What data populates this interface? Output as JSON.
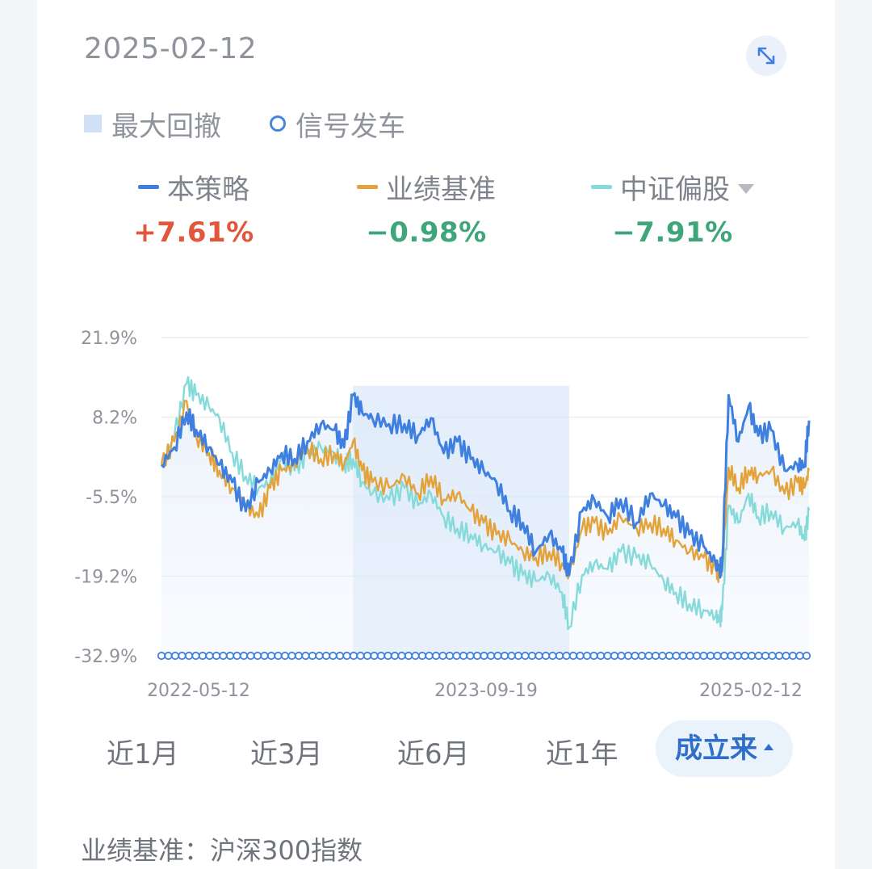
{
  "header": {
    "date": "2025-02-12",
    "expand_icon": "expand-arrows-icon"
  },
  "toggles": [
    {
      "label": "最大回撤",
      "icon": "square-legend-icon"
    },
    {
      "label": "信号发车",
      "icon": "circle-legend-icon"
    }
  ],
  "series_summary": [
    {
      "name": "本策略",
      "value": "+7.61%",
      "line_color": "#3f7fe0",
      "value_color": "#e2573c"
    },
    {
      "name": "业绩基准",
      "value": "−0.98%",
      "line_color": "#e3a23a",
      "value_color": "#3fa57a"
    },
    {
      "name": "中证偏股",
      "value": "−7.91%",
      "line_color": "#86dada",
      "value_color": "#3fa57a",
      "has_dropdown": true
    }
  ],
  "chart_data": {
    "type": "line",
    "y_ticks": [
      "21.9%",
      "8.2%",
      "-5.5%",
      "-19.2%",
      "-32.9%"
    ],
    "ylim": [
      -32.9,
      21.9
    ],
    "x_ticks": [
      "2022-05-12",
      "2023-09-19",
      "2025-02-12"
    ],
    "x_range": [
      "2022-05-12",
      "2025-02-12"
    ],
    "grid": true,
    "drawdown_shading": {
      "start": "2023-03-06",
      "end": "2024-02-05"
    },
    "signal_markers": "continuous along x-axis",
    "series": [
      {
        "name": "本策略",
        "color": "#3f7fe0",
        "x": [
          "2022-05-12",
          "2022-06-01",
          "2022-06-20",
          "2022-07-05",
          "2022-07-25",
          "2022-08-10",
          "2022-08-30",
          "2022-09-20",
          "2022-10-10",
          "2022-10-28",
          "2022-11-15",
          "2022-12-05",
          "2022-12-25",
          "2023-01-15",
          "2023-02-05",
          "2023-02-20",
          "2023-03-06",
          "2023-03-20",
          "2023-04-05",
          "2023-05-01",
          "2023-05-25",
          "2023-06-15",
          "2023-07-05",
          "2023-07-25",
          "2023-08-15",
          "2023-09-05",
          "2023-09-25",
          "2023-10-15",
          "2023-11-05",
          "2023-11-25",
          "2023-12-15",
          "2024-01-05",
          "2024-01-25",
          "2024-02-05",
          "2024-02-25",
          "2024-03-15",
          "2024-04-05",
          "2024-04-25",
          "2024-05-20",
          "2024-06-10",
          "2024-07-01",
          "2024-07-20",
          "2024-08-10",
          "2024-09-01",
          "2024-09-20",
          "2024-09-26",
          "2024-09-30",
          "2024-10-10",
          "2024-10-25",
          "2024-11-10",
          "2024-11-25",
          "2024-12-15",
          "2025-01-05",
          "2025-01-25",
          "2025-02-05",
          "2025-02-12"
        ],
        "values": [
          0,
          3,
          9,
          6,
          3,
          0,
          -3,
          -8,
          -3,
          -1,
          2,
          1,
          4,
          7,
          6,
          3,
          12,
          9,
          8,
          7,
          7,
          5,
          8,
          2,
          4,
          1,
          -1,
          -3,
          -8,
          -10,
          -15,
          -12,
          -15,
          -19,
          -8,
          -6,
          -9,
          -6,
          -10,
          -5,
          -7,
          -9,
          -12,
          -14,
          -17,
          -18,
          -17,
          12,
          4,
          10,
          5,
          6,
          -1,
          0,
          0,
          7.61
        ]
      },
      {
        "name": "业绩基准",
        "color": "#e3a23a",
        "x": [
          "2022-05-12",
          "2022-06-01",
          "2022-06-20",
          "2022-07-05",
          "2022-07-25",
          "2022-08-10",
          "2022-08-30",
          "2022-09-20",
          "2022-10-10",
          "2022-10-28",
          "2022-11-15",
          "2022-12-05",
          "2022-12-25",
          "2023-01-15",
          "2023-02-05",
          "2023-02-20",
          "2023-03-06",
          "2023-03-20",
          "2023-04-05",
          "2023-05-01",
          "2023-05-25",
          "2023-06-15",
          "2023-07-05",
          "2023-07-25",
          "2023-08-15",
          "2023-09-05",
          "2023-09-25",
          "2023-10-15",
          "2023-11-05",
          "2023-11-25",
          "2023-12-15",
          "2024-01-05",
          "2024-01-25",
          "2024-02-05",
          "2024-02-25",
          "2024-03-15",
          "2024-04-05",
          "2024-04-25",
          "2024-05-20",
          "2024-06-10",
          "2024-07-01",
          "2024-07-20",
          "2024-08-10",
          "2024-09-01",
          "2024-09-20",
          "2024-09-26",
          "2024-09-30",
          "2024-10-10",
          "2024-10-25",
          "2024-11-10",
          "2024-11-25",
          "2024-12-15",
          "2025-01-05",
          "2025-01-25",
          "2025-02-05",
          "2025-02-12"
        ],
        "values": [
          0,
          4,
          11,
          5,
          2,
          -1,
          -4,
          -7,
          -9,
          -4,
          -1,
          0,
          3,
          1,
          2,
          0,
          4,
          -1,
          -3,
          -4,
          -2,
          -5,
          -2,
          -6,
          -5,
          -8,
          -10,
          -12,
          -13,
          -15,
          -16,
          -15,
          -17,
          -19,
          -11,
          -10,
          -12,
          -9,
          -11,
          -10,
          -11,
          -13,
          -15,
          -16,
          -18,
          -19,
          -18,
          -0.5,
          -4,
          -1,
          -2,
          -1,
          -5,
          -3,
          -4,
          -0.98
        ]
      },
      {
        "name": "中证偏股",
        "color": "#86dada",
        "x": [
          "2022-05-12",
          "2022-06-01",
          "2022-06-20",
          "2022-07-05",
          "2022-07-25",
          "2022-08-10",
          "2022-08-30",
          "2022-09-20",
          "2022-10-10",
          "2022-10-28",
          "2022-11-15",
          "2022-12-05",
          "2022-12-25",
          "2023-01-15",
          "2023-02-05",
          "2023-02-20",
          "2023-03-06",
          "2023-03-20",
          "2023-04-05",
          "2023-05-01",
          "2023-05-25",
          "2023-06-15",
          "2023-07-05",
          "2023-07-25",
          "2023-08-15",
          "2023-09-05",
          "2023-09-25",
          "2023-10-15",
          "2023-11-05",
          "2023-11-25",
          "2023-12-15",
          "2024-01-05",
          "2024-01-25",
          "2024-02-05",
          "2024-02-25",
          "2024-03-15",
          "2024-04-05",
          "2024-04-25",
          "2024-05-20",
          "2024-06-10",
          "2024-07-01",
          "2024-07-20",
          "2024-08-10",
          "2024-09-01",
          "2024-09-20",
          "2024-09-26",
          "2024-09-30",
          "2024-10-10",
          "2024-10-25",
          "2024-11-10",
          "2024-11-25",
          "2024-12-15",
          "2025-01-05",
          "2025-01-25",
          "2025-02-05",
          "2025-02-12"
        ],
        "values": [
          0,
          5,
          14,
          12,
          10,
          8,
          2,
          -2,
          -4,
          -3,
          1,
          -1,
          2,
          3,
          2,
          0,
          1,
          -3,
          -5,
          -6,
          -4,
          -7,
          -5,
          -9,
          -11,
          -12,
          -14,
          -15,
          -17,
          -19,
          -20,
          -19,
          -22,
          -28,
          -19,
          -17,
          -18,
          -15,
          -16,
          -17,
          -20,
          -22,
          -24,
          -25,
          -26,
          -27,
          -25,
          -7,
          -10,
          -5,
          -9,
          -8,
          -11,
          -10,
          -13,
          -7.91
        ]
      }
    ]
  },
  "periods": [
    {
      "label": "近1月",
      "active": false
    },
    {
      "label": "近3月",
      "active": false
    },
    {
      "label": "近6月",
      "active": false
    },
    {
      "label": "近1年",
      "active": false
    },
    {
      "label": "成立来",
      "active": true
    }
  ],
  "footer": {
    "note": "业绩基准：沪深300指数"
  }
}
